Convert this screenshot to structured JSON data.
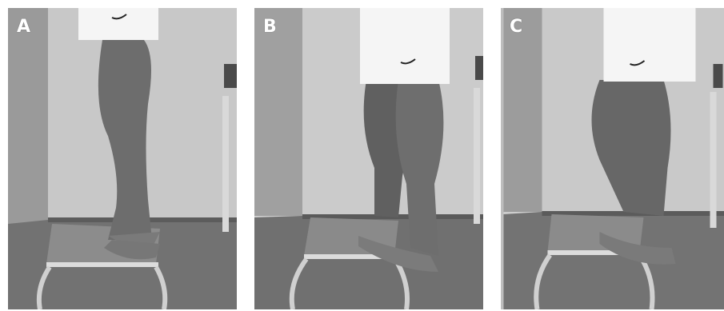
{
  "panels": [
    {
      "label": "A"
    },
    {
      "label": "B"
    },
    {
      "label": "C"
    }
  ],
  "colors": {
    "background": "#ffffff",
    "wall": "#c9c9c9",
    "wall_shadow": "#8f8f8f",
    "floor": "#6f6f6f",
    "stool_top": "#8d8d8d",
    "stool_frame": "#d6d6d6",
    "skin": "#6a6a6a",
    "shorts": "#f7f7f7"
  },
  "icons": [
    "nike-logo-icon"
  ]
}
